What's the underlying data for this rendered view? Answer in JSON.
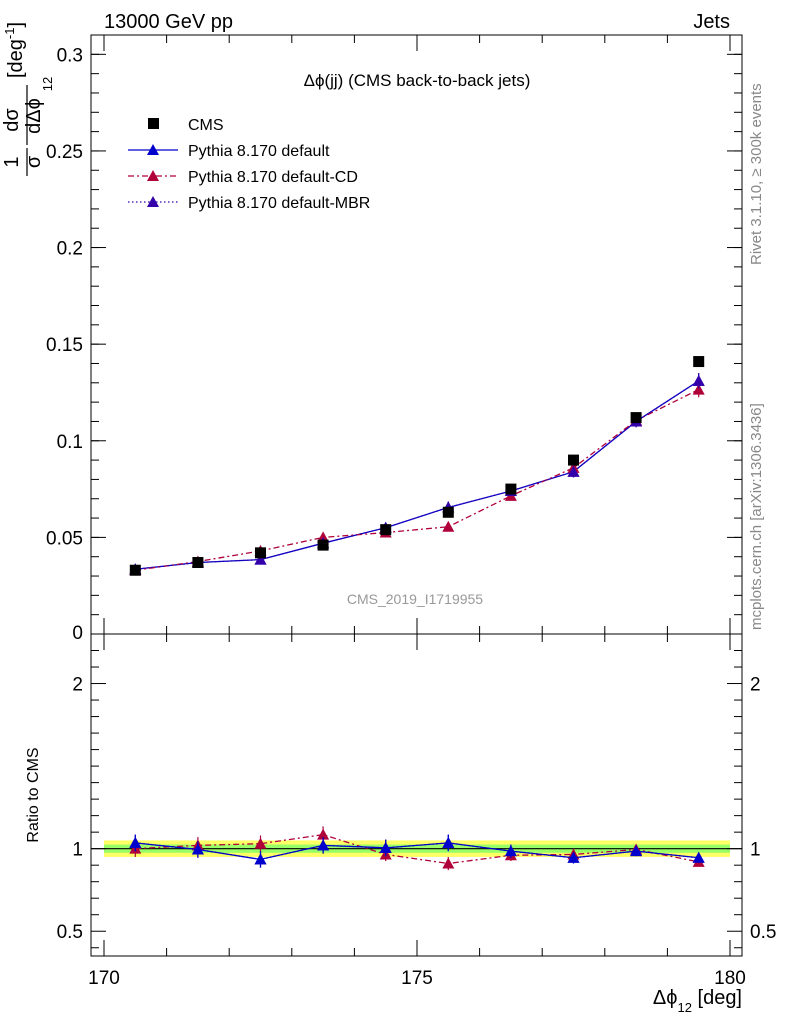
{
  "header": {
    "left": "13000 GeV pp",
    "right": "Jets"
  },
  "side_labels": {
    "rivet": "Rivet 3.1.10, ≥ 300k events",
    "mcplots": "mcplots.cern.ch [arXiv:1306.3436]"
  },
  "watermark": "CMS_2019_I1719955",
  "chart_data": {
    "type": "scatter",
    "title": "Δϕ(jj) (CMS back-to-back jets)",
    "x_axis": {
      "label_main": "Δϕ",
      "label_sub": "12",
      "label_unit": " [deg]",
      "range": [
        170,
        180
      ],
      "ticks": [
        170,
        175,
        180
      ],
      "tick_labels": [
        "170",
        "175",
        "180"
      ]
    },
    "y_axis": {
      "label_prefix": "1",
      "label_num": "dσ",
      "label_den": "σ",
      "label_den2": "dΔϕ",
      "label_sub": "12",
      "label_unit": "[deg",
      "label_sup": "-1",
      "label_close": "]",
      "range": [
        0,
        0.31
      ],
      "ticks": [
        0.05,
        0.1,
        0.15,
        0.2,
        0.25,
        0.3
      ],
      "tick_labels": [
        "0.05",
        "0.1",
        "0.15",
        "0.2",
        "0.25",
        "0.3"
      ],
      "zero_label": "0"
    },
    "x": [
      170.5,
      171.5,
      172.5,
      173.5,
      174.5,
      175.5,
      176.5,
      177.5,
      178.5,
      179.5
    ],
    "series": [
      {
        "name": "CMS",
        "color": "#000000",
        "marker": "square",
        "values": [
          0.033,
          0.037,
          0.042,
          0.046,
          0.054,
          0.063,
          0.075,
          0.09,
          0.112,
          0.141
        ]
      },
      {
        "name": "Pythia 8.170 default",
        "color": "#0000cc",
        "marker": "triangle",
        "line": "solid",
        "values": [
          0.0335,
          0.037,
          0.0385,
          0.047,
          0.055,
          0.0655,
          0.074,
          0.084,
          0.11,
          0.131
        ],
        "errors": [
          0.002,
          0.002,
          0.002,
          0.002,
          0.002,
          0.003,
          0.002,
          0.003,
          0.003,
          0.004
        ]
      },
      {
        "name": "Pythia 8.170 default-CD",
        "color": "#b0003a",
        "marker": "triangle",
        "line": "dashdot",
        "values": [
          0.033,
          0.0375,
          0.043,
          0.05,
          0.0525,
          0.0555,
          0.0715,
          0.086,
          0.1105,
          0.1265
        ],
        "errors": [
          0.002,
          0.002,
          0.002,
          0.002,
          0.002,
          0.002,
          0.002,
          0.003,
          0.003,
          0.004
        ]
      },
      {
        "name": "Pythia 8.170 default-MBR",
        "color": "#3300aa",
        "marker": "triangle",
        "line": "dotted",
        "values": [
          0.0335,
          0.037,
          0.0385,
          0.047,
          0.055,
          0.0655,
          0.074,
          0.084,
          0.11,
          0.131
        ],
        "errors": [
          0.002,
          0.002,
          0.002,
          0.002,
          0.002,
          0.003,
          0.002,
          0.003,
          0.003,
          0.004
        ]
      }
    ],
    "ratio": {
      "ylabel": "Ratio to CMS",
      "range": [
        0.35,
        2.3
      ],
      "ticks": [
        0.5,
        1,
        2
      ],
      "tick_labels": [
        "0.5",
        "1",
        "2"
      ],
      "band_inner": 0.025,
      "band_outer": 0.05,
      "band_colors": [
        "#ffff66",
        "#99ff66"
      ],
      "series": [
        {
          "name": "Pythia 8.170 default",
          "values": [
            1.035,
            0.995,
            0.935,
            1.02,
            1.005,
            1.035,
            0.985,
            0.945,
            0.985,
            0.945
          ],
          "errors": [
            0.05,
            0.05,
            0.05,
            0.05,
            0.05,
            0.05,
            0.04,
            0.035,
            0.03,
            0.03
          ]
        },
        {
          "name": "Pythia 8.170 default-CD",
          "values": [
            1.0,
            1.02,
            1.03,
            1.085,
            0.965,
            0.91,
            0.96,
            0.965,
            0.995,
            0.92
          ],
          "errors": [
            0.05,
            0.05,
            0.05,
            0.05,
            0.04,
            0.04,
            0.035,
            0.035,
            0.03,
            0.025
          ]
        },
        {
          "name": "Pythia 8.170 default-MBR",
          "values": [
            1.035,
            0.995,
            0.935,
            1.02,
            1.005,
            1.035,
            0.985,
            0.945,
            0.985,
            0.945
          ],
          "errors": [
            0.05,
            0.05,
            0.05,
            0.05,
            0.05,
            0.05,
            0.04,
            0.035,
            0.03,
            0.03
          ]
        }
      ]
    }
  }
}
